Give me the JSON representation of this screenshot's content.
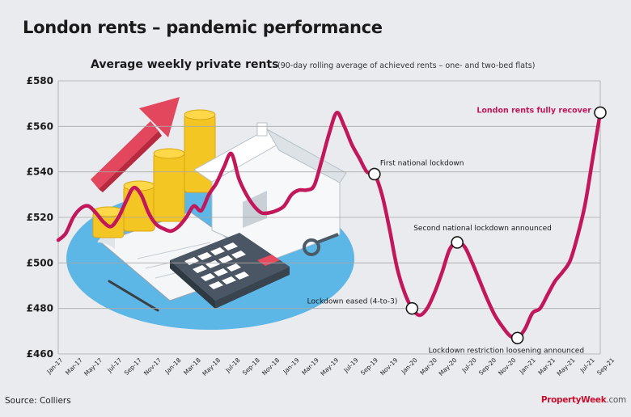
{
  "header": {
    "title": "London rents – pandemic performance",
    "subtitle": "Average weekly private rents",
    "note": "(90-day rolling average of achieved rents – one- and two-bed flats)"
  },
  "footer": {
    "source": "Source: Colliers",
    "brand_name": "PropertyWeek",
    "brand_domain": ".com"
  },
  "colors": {
    "line": "#c2185b",
    "grid": "#a9a9a9",
    "background": "#e9ebee",
    "plot_bg": "#e9ebee"
  },
  "chart_data": {
    "type": "line",
    "title": "Average weekly private rents",
    "xlabel": "",
    "ylabel": "",
    "ylim": [
      460,
      580
    ],
    "yticks": [
      460,
      480,
      500,
      520,
      540,
      560,
      580
    ],
    "ytick_labels": [
      "£460",
      "£480",
      "£500",
      "£520",
      "£540",
      "£560",
      "£580"
    ],
    "grid": true,
    "xtick_labels": [
      "Jan-17",
      "Mar-17",
      "May-17",
      "Jul-17",
      "Sep-17",
      "Nov-17",
      "Jan-18",
      "Mar-18",
      "May-18",
      "Jul-18",
      "Sep-18",
      "Nov-18",
      "Jan-19",
      "Mar-19",
      "May-19",
      "Jul-19",
      "Sep-19",
      "Nov-19",
      "Jan-20",
      "Mar-20",
      "May-20",
      "Jul-20",
      "Sep-20",
      "Nov-20",
      "Jan-21",
      "Mar-21",
      "May-21",
      "Jul-21",
      "Sep-21"
    ],
    "series": [
      {
        "values": [
          [
            0,
            510
          ],
          [
            1,
            513
          ],
          [
            2,
            520
          ],
          [
            3,
            524
          ],
          [
            4,
            525
          ],
          [
            5,
            522
          ],
          [
            6,
            518
          ],
          [
            7,
            516
          ],
          [
            8,
            520
          ],
          [
            9,
            527
          ],
          [
            10,
            533
          ],
          [
            11,
            530
          ],
          [
            12,
            522
          ],
          [
            13,
            517
          ],
          [
            14,
            515
          ],
          [
            15,
            514
          ],
          [
            16,
            516
          ],
          [
            17,
            520
          ],
          [
            18,
            525
          ],
          [
            19,
            523
          ],
          [
            20,
            530
          ],
          [
            21,
            535
          ],
          [
            22,
            542
          ],
          [
            23,
            548
          ],
          [
            24,
            537
          ],
          [
            25,
            530
          ],
          [
            26,
            525
          ],
          [
            27,
            522
          ],
          [
            28,
            522
          ],
          [
            29,
            523
          ],
          [
            30,
            525
          ],
          [
            31,
            530
          ],
          [
            32,
            532
          ],
          [
            33,
            532
          ],
          [
            34,
            534
          ],
          [
            35,
            545
          ],
          [
            36,
            557
          ],
          [
            37,
            566
          ],
          [
            38,
            560
          ],
          [
            39,
            552
          ],
          [
            40,
            546
          ],
          [
            41,
            540
          ],
          [
            42,
            539
          ],
          [
            43,
            530
          ],
          [
            44,
            515
          ],
          [
            45,
            498
          ],
          [
            46,
            487
          ],
          [
            47,
            480
          ],
          [
            48,
            477
          ],
          [
            49,
            480
          ],
          [
            50,
            487
          ],
          [
            51,
            496
          ],
          [
            52,
            506
          ],
          [
            53,
            509
          ],
          [
            54,
            507
          ],
          [
            55,
            500
          ],
          [
            56,
            492
          ],
          [
            57,
            484
          ],
          [
            58,
            477
          ],
          [
            59,
            472
          ],
          [
            60,
            468
          ],
          [
            61,
            467
          ],
          [
            62,
            471
          ],
          [
            63,
            478
          ],
          [
            64,
            480
          ],
          [
            65,
            486
          ],
          [
            66,
            492
          ],
          [
            67,
            496
          ],
          [
            68,
            501
          ],
          [
            69,
            512
          ],
          [
            70,
            526
          ],
          [
            71,
            546
          ],
          [
            72,
            566
          ]
        ]
      }
    ],
    "annotations": [
      {
        "label": "First national lockdown",
        "at": 42,
        "value": 539
      },
      {
        "label": "Lockdown eased (4-to-3)",
        "at": 47,
        "value": 480
      },
      {
        "label": "Second national lockdown announced",
        "at": 53,
        "value": 509
      },
      {
        "label": "Lockdown restriction loosening announced",
        "at": 61,
        "value": 467
      },
      {
        "label": "London rents fully recover",
        "at": 72,
        "value": 566,
        "highlight": true
      }
    ]
  }
}
